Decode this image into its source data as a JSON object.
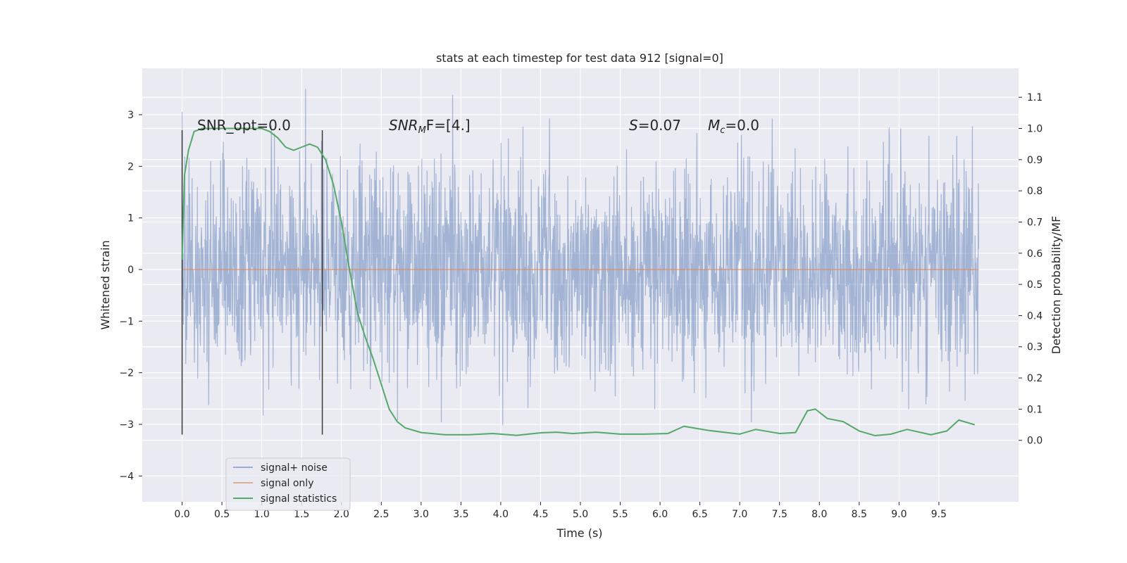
{
  "chart_data": {
    "type": "line",
    "title": "stats at each timestep for test data 912 [signal=0]",
    "xlabel": "Time (s)",
    "ylabel_left": "Whitened strain",
    "ylabel_right": "Detection probability/MF",
    "xlim": [
      -0.5,
      10.5
    ],
    "ylim_left": [
      -4.5,
      3.9
    ],
    "ylim_right": [
      -0.197,
      1.193
    ],
    "x_ticks": [
      "0.0",
      "0.5",
      "1.0",
      "1.5",
      "2.0",
      "2.5",
      "3.0",
      "3.5",
      "4.0",
      "4.5",
      "5.0",
      "5.5",
      "6.0",
      "6.5",
      "7.0",
      "7.5",
      "8.0",
      "8.5",
      "9.0",
      "9.5"
    ],
    "y_left_ticks": [
      "3",
      "2",
      "1",
      "0",
      "−1",
      "−2",
      "−3",
      "−4"
    ],
    "y_right_ticks": [
      "1.1",
      "1.0",
      "0.9",
      "0.8",
      "0.7",
      "0.6",
      "0.5",
      "0.4",
      "0.3",
      "0.2",
      "0.1",
      "0.0"
    ],
    "grid": true,
    "legend_position": "lower-left",
    "colors": {
      "noise": "#4c72b0",
      "signal": "#dd8452",
      "stats": "#55a868",
      "background": "#eaeaf2",
      "marker": "#3a3a3a"
    },
    "annotations": [
      {
        "text": "SNR_opt=0.0"
      },
      {
        "text": "SNR",
        "sub": "M",
        "rest": "F=[4.]"
      },
      {
        "text": "S",
        "rest": "=0.07"
      },
      {
        "text": "M",
        "sub": "c",
        "rest": "=0.0"
      }
    ],
    "markers_x": [
      0.0,
      1.76
    ],
    "series": [
      {
        "name": "signal+ noise",
        "noise_x_range": [
          0.0,
          10.0
        ]
      },
      {
        "name": "signal only",
        "x": [
          0.0,
          10.0
        ],
        "y": [
          0.0,
          0.0
        ]
      },
      {
        "name": "signal statistics",
        "x": [
          0.0,
          0.03,
          0.08,
          0.15,
          0.25,
          0.4,
          0.6,
          0.8,
          1.0,
          1.1,
          1.2,
          1.3,
          1.4,
          1.5,
          1.6,
          1.7,
          1.8,
          1.9,
          2.0,
          2.1,
          2.2,
          2.3,
          2.4,
          2.5,
          2.6,
          2.7,
          2.8,
          3.0,
          3.3,
          3.6,
          3.9,
          4.2,
          4.5,
          4.7,
          4.9,
          5.2,
          5.5,
          5.8,
          6.1,
          6.3,
          6.6,
          7.0,
          7.2,
          7.5,
          7.7,
          7.85,
          7.95,
          8.1,
          8.3,
          8.5,
          8.7,
          8.9,
          9.1,
          9.4,
          9.6,
          9.75,
          9.95
        ],
        "y": [
          0.58,
          0.85,
          0.93,
          0.99,
          1.0,
          1.0,
          1.0,
          1.0,
          1.0,
          0.99,
          0.97,
          0.94,
          0.93,
          0.94,
          0.95,
          0.94,
          0.9,
          0.82,
          0.7,
          0.55,
          0.41,
          0.33,
          0.26,
          0.18,
          0.1,
          0.06,
          0.04,
          0.025,
          0.018,
          0.018,
          0.022,
          0.016,
          0.024,
          0.026,
          0.022,
          0.026,
          0.02,
          0.02,
          0.022,
          0.045,
          0.032,
          0.02,
          0.035,
          0.022,
          0.025,
          0.095,
          0.1,
          0.07,
          0.06,
          0.03,
          0.015,
          0.02,
          0.035,
          0.018,
          0.03,
          0.065,
          0.05
        ]
      }
    ]
  }
}
